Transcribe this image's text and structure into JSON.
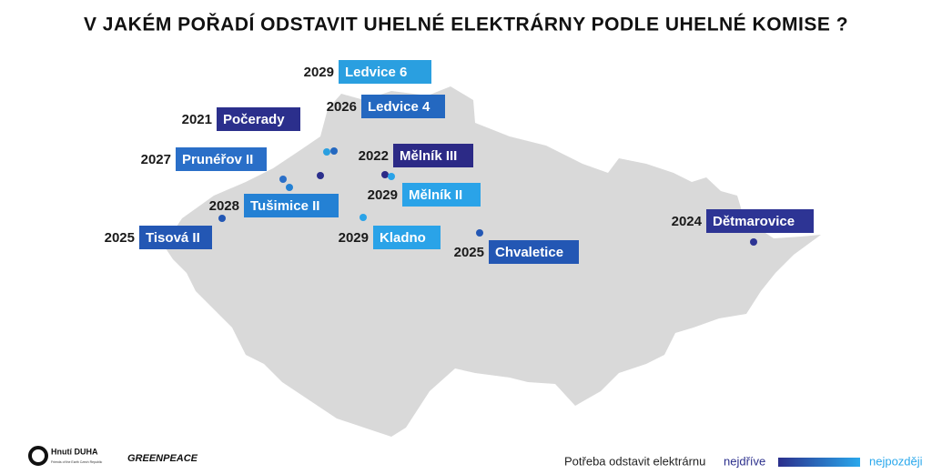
{
  "title": "V JAKÉM POŘADÍ ODSTAVIT UHELNÉ ELEKTRÁRNY PODLE UHELNÉ KOMISE ?",
  "plants": [
    {
      "name": "Ledvice 6",
      "year": 2029,
      "color": "#2a9fe0"
    },
    {
      "name": "Ledvice 4",
      "year": 2026,
      "color": "#2468c0"
    },
    {
      "name": "Počerady",
      "year": 2021,
      "color": "#2b2f8c"
    },
    {
      "name": "Prunéřov II",
      "year": 2027,
      "color": "#2a6fc8"
    },
    {
      "name": "Mělník III",
      "year": 2022,
      "color": "#2c2a86"
    },
    {
      "name": "Mělník II",
      "year": 2029,
      "color": "#2aa3e8"
    },
    {
      "name": "Tušimice II",
      "year": 2028,
      "color": "#2481d4"
    },
    {
      "name": "Tisová II",
      "year": 2025,
      "color": "#2357b4"
    },
    {
      "name": "Kladno",
      "year": 2029,
      "color": "#2aa3e8"
    },
    {
      "name": "Chvaletice",
      "year": 2025,
      "color": "#2357b4"
    },
    {
      "name": "Dětmarovice",
      "year": 2024,
      "color": "#2d3494"
    }
  ],
  "legend": {
    "label": "Potřeba odstavit elektrárnu",
    "start": "nejdříve",
    "end": "nejpozději"
  },
  "logos": {
    "duha": "Hnutí DUHA",
    "duha_sub": "Friends of the Earth Czech Republic",
    "greenpeace": "GREENPEACE"
  }
}
